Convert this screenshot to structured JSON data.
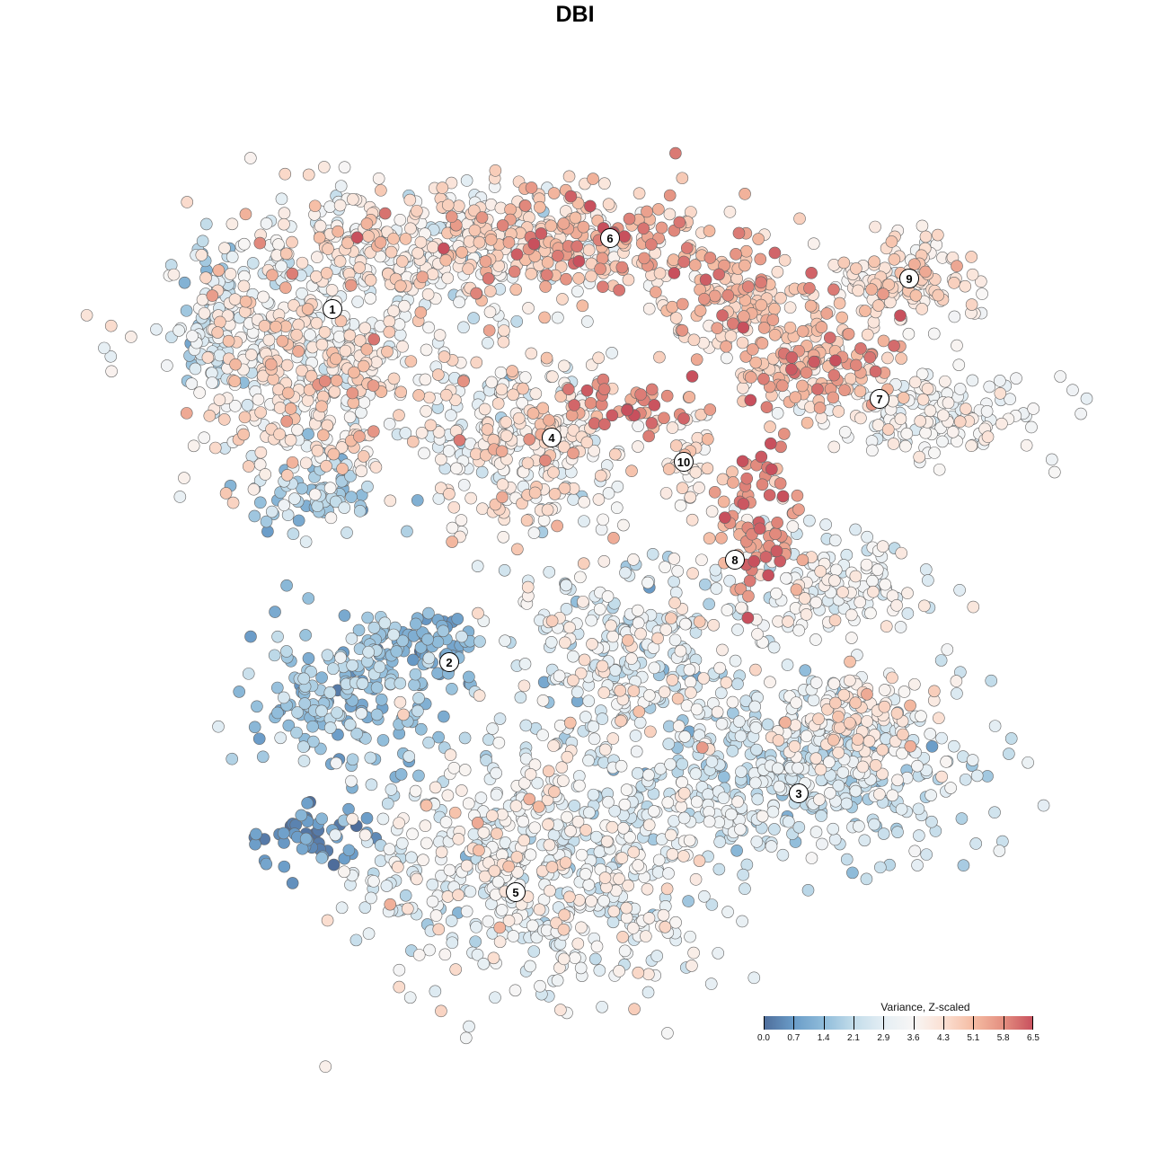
{
  "chart_data": {
    "type": "scatter",
    "title": "DBI",
    "xlabel": "",
    "ylabel": "",
    "xlim": [
      -45,
      50
    ],
    "ylim": [
      -45,
      47
    ],
    "grid": false,
    "legend": {
      "title": "Variance, Z-scaled",
      "placement": "bottom-right",
      "ticks": [
        "0.0",
        "0.7",
        "1.4",
        "2.1",
        "2.9",
        "3.6",
        "4.3",
        "5.1",
        "5.8",
        "6.5"
      ],
      "range": [
        0,
        6.5
      ],
      "colors": [
        "#4e6d9b",
        "#6a9cc8",
        "#8fbcda",
        "#c2dcea",
        "#e4eef4",
        "#f8f6f5",
        "#fbe0d3",
        "#f5bca3",
        "#e48f80",
        "#c8505d"
      ]
    },
    "cluster_labels": [
      {
        "label": "1",
        "x": -27.0,
        "y": 29.6
      },
      {
        "label": "2",
        "x": -14.0,
        "y": -9.7
      },
      {
        "label": "3",
        "x": 24.9,
        "y": -24.3
      },
      {
        "label": "4",
        "x": -2.6,
        "y": 15.3
      },
      {
        "label": "5",
        "x": -6.6,
        "y": -35.3
      },
      {
        "label": "6",
        "x": 3.9,
        "y": 37.5
      },
      {
        "label": "7",
        "x": 33.9,
        "y": 19.6
      },
      {
        "label": "8",
        "x": 17.8,
        "y": 1.7
      },
      {
        "label": "9",
        "x": 37.2,
        "y": 33.0
      },
      {
        "label": "10",
        "x": 12.1,
        "y": 12.6
      }
    ],
    "point_groups": [
      {
        "x": -30,
        "y": 24,
        "sx": 7,
        "sy": 7,
        "n": 500,
        "value_mean": 3.8,
        "value_sd": 0.8
      },
      {
        "x": -17,
        "y": 37,
        "sx": 9,
        "sy": 3.5,
        "n": 300,
        "value_mean": 3.6,
        "value_sd": 0.8
      },
      {
        "x": -40,
        "y": 28,
        "sx": 2,
        "sy": 5,
        "n": 80,
        "value_mean": 2.3,
        "value_sd": 0.6
      },
      {
        "x": -29,
        "y": 9,
        "sx": 4,
        "sy": 2,
        "n": 60,
        "value_mean": 1.8,
        "value_sd": 0.6
      },
      {
        "x": 1,
        "y": 37,
        "sx": 8,
        "sy": 3,
        "n": 250,
        "value_mean": 4.8,
        "value_sd": 0.8
      },
      {
        "x": 18,
        "y": 30,
        "sx": 4,
        "sy": 3,
        "n": 120,
        "value_mean": 4.8,
        "value_sd": 0.7
      },
      {
        "x": 26,
        "y": 24,
        "sx": 5,
        "sy": 3,
        "n": 150,
        "value_mean": 5.0,
        "value_sd": 0.7
      },
      {
        "x": 36,
        "y": 33,
        "sx": 5,
        "sy": 2.5,
        "n": 130,
        "value_mean": 4.2,
        "value_sd": 0.6
      },
      {
        "x": 40,
        "y": 17.5,
        "sx": 6,
        "sy": 2.5,
        "n": 150,
        "value_mean": 3.5,
        "value_sd": 0.5
      },
      {
        "x": -6,
        "y": 15,
        "sx": 5.5,
        "sy": 5,
        "n": 300,
        "value_mean": 3.7,
        "value_sd": 0.8
      },
      {
        "x": 6,
        "y": 19,
        "sx": 4,
        "sy": 1.5,
        "n": 40,
        "value_mean": 6.0,
        "value_sd": 0.4
      },
      {
        "x": 12.5,
        "y": 13,
        "sx": 2,
        "sy": 3,
        "n": 40,
        "value_mean": 4.2,
        "value_sd": 0.5
      },
      {
        "x": 20,
        "y": 6,
        "sx": 2.5,
        "sy": 4.5,
        "n": 80,
        "value_mean": 5.6,
        "value_sd": 0.6
      },
      {
        "x": 29,
        "y": -1,
        "sx": 5,
        "sy": 3,
        "n": 130,
        "value_mean": 3.3,
        "value_sd": 0.6
      },
      {
        "x": -25,
        "y": -13,
        "sx": 6,
        "sy": 4.5,
        "n": 200,
        "value_mean": 1.6,
        "value_sd": 0.5
      },
      {
        "x": -17,
        "y": -8,
        "sx": 3,
        "sy": 2,
        "n": 60,
        "value_mean": 1.1,
        "value_sd": 0.4
      },
      {
        "x": 6,
        "y": -9,
        "sx": 8,
        "sy": 6,
        "n": 300,
        "value_mean": 3.0,
        "value_sd": 0.9
      },
      {
        "x": 24,
        "y": -22,
        "sx": 10,
        "sy": 5,
        "n": 450,
        "value_mean": 2.5,
        "value_sd": 0.6
      },
      {
        "x": 32,
        "y": -16,
        "sx": 5,
        "sy": 3,
        "n": 120,
        "value_mean": 4.0,
        "value_sd": 0.6
      },
      {
        "x": -4,
        "y": -32,
        "sx": 10,
        "sy": 7,
        "n": 600,
        "value_mean": 3.2,
        "value_sd": 0.7
      },
      {
        "x": -29,
        "y": -29,
        "sx": 3.5,
        "sy": 2,
        "n": 50,
        "value_mean": 0.8,
        "value_sd": 0.4
      }
    ]
  }
}
